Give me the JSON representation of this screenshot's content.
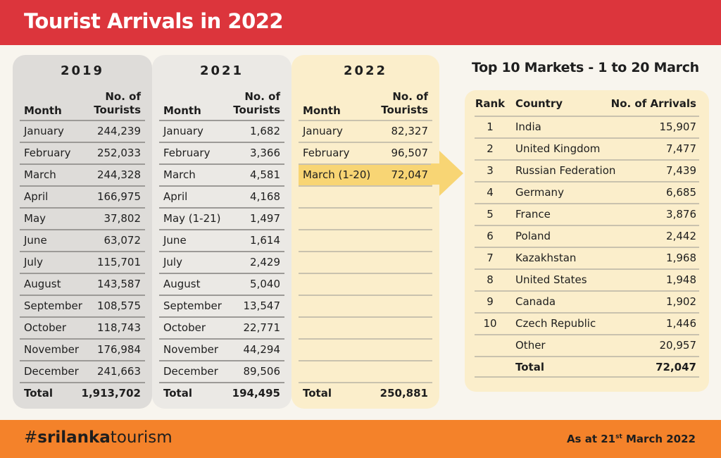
{
  "title": "Tourist Arrivals in 2022",
  "tables": {
    "y2019": {
      "year": "2019",
      "col_month": "Month",
      "col_tourists": [
        "No. of",
        "Tourists"
      ],
      "rows": [
        [
          "January",
          "244,239"
        ],
        [
          "February",
          "252,033"
        ],
        [
          "March",
          "244,328"
        ],
        [
          "April",
          "166,975"
        ],
        [
          "May",
          "37,802"
        ],
        [
          "June",
          "63,072"
        ],
        [
          "July",
          "115,701"
        ],
        [
          "August",
          "143,587"
        ],
        [
          "September",
          "108,575"
        ],
        [
          "October",
          "118,743"
        ],
        [
          "November",
          "176,984"
        ],
        [
          "December",
          "241,663"
        ]
      ],
      "total_label": "Total",
      "total": "1,913,702"
    },
    "y2021": {
      "year": "2021",
      "col_month": "Month",
      "col_tourists": [
        "No. of",
        "Tourists"
      ],
      "rows": [
        [
          "January",
          "1,682"
        ],
        [
          "February",
          "3,366"
        ],
        [
          "March",
          "4,581"
        ],
        [
          "April",
          "4,168"
        ],
        [
          "May (1-21)",
          "1,497"
        ],
        [
          "June",
          "1,614"
        ],
        [
          "July",
          "2,429"
        ],
        [
          "August",
          "5,040"
        ],
        [
          "September",
          "13,547"
        ],
        [
          "October",
          "22,771"
        ],
        [
          "November",
          "44,294"
        ],
        [
          "December",
          "89,506"
        ]
      ],
      "total_label": "Total",
      "total": "194,495"
    },
    "y2022": {
      "year": "2022",
      "col_month": "Month",
      "col_tourists": [
        "No. of",
        "Tourists"
      ],
      "rows": [
        [
          "January",
          "82,327"
        ],
        [
          "February",
          "96,507"
        ],
        [
          "March (1-20)",
          "72,047"
        ],
        [
          "",
          ""
        ],
        [
          "",
          ""
        ],
        [
          "",
          ""
        ],
        [
          "",
          ""
        ],
        [
          "",
          ""
        ],
        [
          "",
          ""
        ],
        [
          "",
          ""
        ],
        [
          "",
          ""
        ],
        [
          "",
          ""
        ]
      ],
      "highlight_row": 2,
      "total_label": "Total",
      "total": "250,881"
    }
  },
  "markets": {
    "title": "Top 10 Markets - 1 to 20 March",
    "col_rank": "Rank",
    "col_country": "Country",
    "col_arrivals": "No. of Arrivals",
    "rows": [
      [
        "1",
        "India",
        "15,907"
      ],
      [
        "2",
        "United Kingdom",
        "7,477"
      ],
      [
        "3",
        "Russian Federation",
        "7,439"
      ],
      [
        "4",
        "Germany",
        "6,685"
      ],
      [
        "5",
        "France",
        "3,876"
      ],
      [
        "6",
        "Poland",
        "2,442"
      ],
      [
        "7",
        "Kazakhstan",
        "1,968"
      ],
      [
        "8",
        "United States",
        "1,948"
      ],
      [
        "9",
        "Canada",
        "1,902"
      ],
      [
        "10",
        "Czech Republic",
        "1,446"
      ],
      [
        "",
        "Other",
        "20,957"
      ]
    ],
    "total_label": "Total",
    "total": "72,047"
  },
  "footer": {
    "hashtag_prefix": "#",
    "hashtag_bold": "srilanka",
    "hashtag_rest": "tourism",
    "as_at_prefix": "As at 21",
    "as_at_sup": "st",
    "as_at_suffix": " March 2022"
  },
  "colors": {
    "header_red": "#dc353c",
    "footer_orange": "#f4822a",
    "highlight_yellow": "#f8d574",
    "card_cream": "#fbeecb"
  }
}
